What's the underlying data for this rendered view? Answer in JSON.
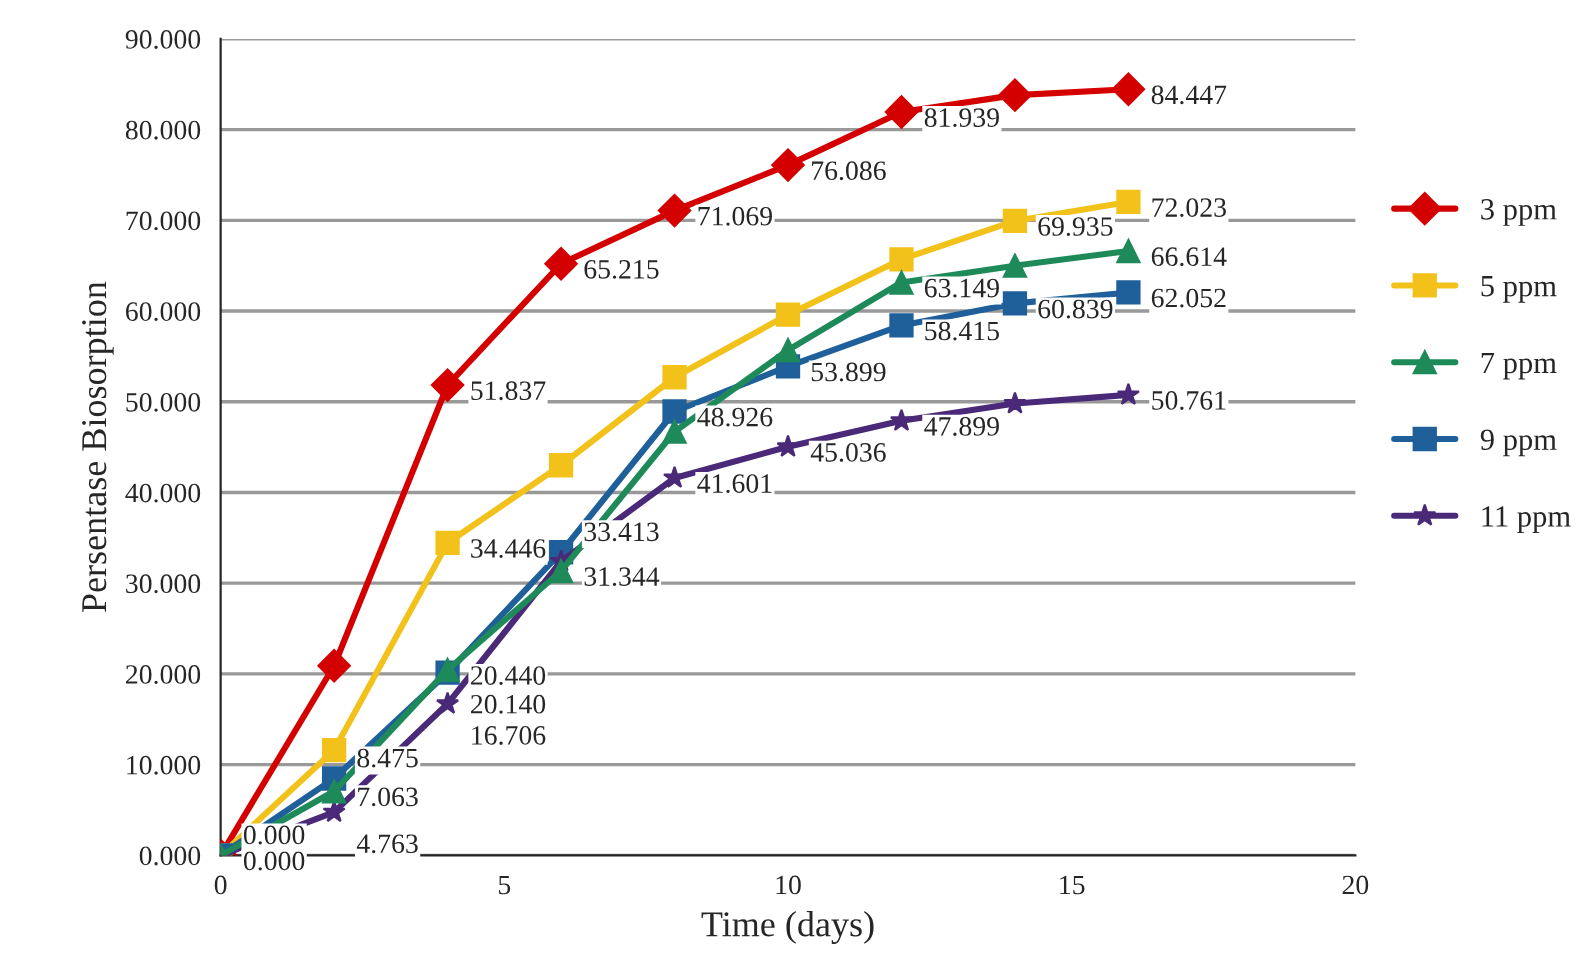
{
  "chart_data": {
    "type": "line",
    "xlabel": "Time (days)",
    "ylabel": "Persentase Biosorption",
    "x": [
      0,
      2,
      4,
      6,
      8,
      10,
      12,
      14,
      16
    ],
    "xlim": [
      0,
      20
    ],
    "xticks": [
      0,
      5,
      10,
      15,
      20
    ],
    "ylim": [
      0,
      90
    ],
    "yticks": [
      {
        "value": 0,
        "label": "0.000"
      },
      {
        "value": 10,
        "label": "10.000"
      },
      {
        "value": 20,
        "label": "20.000"
      },
      {
        "value": 30,
        "label": "30.000"
      },
      {
        "value": 40,
        "label": "40.000"
      },
      {
        "value": 50,
        "label": "50.000"
      },
      {
        "value": 60,
        "label": "60.000"
      },
      {
        "value": 70,
        "label": "70.000"
      },
      {
        "value": 80,
        "label": "80.000"
      },
      {
        "value": 90,
        "label": "90.000"
      }
    ],
    "grid": "y",
    "legend": "right",
    "line_style": "solid",
    "series": [
      {
        "name": "3 ppm",
        "color": "#d40000",
        "marker": "diamond",
        "values": [
          0,
          20.9,
          51.837,
          65.215,
          71.069,
          76.086,
          81.939,
          83.8,
          84.447
        ],
        "value_labels": [
          null,
          null,
          "51.837",
          "65.215",
          "71.069",
          "76.086",
          "81.939",
          null,
          "84.447"
        ]
      },
      {
        "name": "5 ppm",
        "color": "#f2c21b",
        "marker": "square",
        "values": [
          0,
          11.6,
          34.446,
          43.0,
          52.7,
          59.6,
          65.7,
          69.935,
          72.023
        ],
        "value_labels": [
          null,
          null,
          "34.446",
          null,
          null,
          null,
          null,
          "69.935",
          "72.023"
        ]
      },
      {
        "name": "7 ppm",
        "color": "#1e8a5a",
        "marker": "triangle",
        "values": [
          0,
          7.063,
          20.44,
          31.344,
          46.7,
          55.7,
          63.149,
          65.0,
          66.614
        ],
        "value_labels": [
          "0.000",
          "7.063",
          "20.440",
          "31.344",
          null,
          null,
          "63.149",
          null,
          "66.614"
        ]
      },
      {
        "name": "9 ppm",
        "color": "#1f5f9a",
        "marker": "square",
        "values": [
          0,
          8.475,
          20.14,
          33.413,
          48.926,
          53.899,
          58.415,
          60.839,
          62.052
        ],
        "value_labels": [
          null,
          "8.475",
          "20.140",
          "33.413",
          "48.926",
          "53.899",
          "58.415",
          "60.839",
          "62.052"
        ]
      },
      {
        "name": "11 ppm",
        "color": "#4a2a78",
        "marker": "star",
        "values": [
          0,
          4.763,
          16.706,
          32.4,
          41.601,
          45.036,
          47.899,
          49.8,
          50.761
        ],
        "value_labels": [
          "0.000",
          "4.763",
          "16.706",
          null,
          "41.601",
          "45.036",
          "47.899",
          null,
          "50.761"
        ]
      }
    ]
  }
}
